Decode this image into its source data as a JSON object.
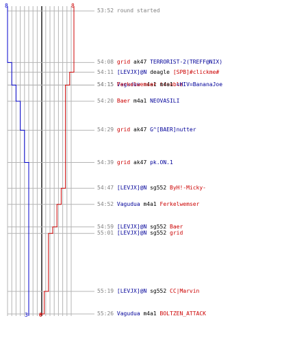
{
  "colors": {
    "team_a": "#0000cc",
    "team_b": "#cc0000",
    "grid": "#b4b4b4",
    "center": "#555555",
    "time": "#808080"
  },
  "team_a_count_start": "8",
  "team_b_count_start": "8",
  "team_a_count_end": "3",
  "team_b_count_end": "0",
  "events": [
    {
      "time": "53:52",
      "parts": [
        {
          "text": "round started",
          "cls": "start"
        }
      ]
    },
    {
      "time": "54:08",
      "parts": [
        {
          "text": "grid",
          "cls": "red"
        },
        {
          "text": " ak47 ",
          "cls": "blk"
        },
        {
          "text": "TERRORIST-2(TREFF@NIX)",
          "cls": "blue"
        }
      ]
    },
    {
      "time": "54:11",
      "parts": [
        {
          "text": "[LEVJX]@N",
          "cls": "blue"
        },
        {
          "text": " deagle ",
          "cls": "blk"
        },
        {
          "text": "[SPB]#clickme#",
          "cls": "red"
        }
      ]
    },
    {
      "time": "54:15",
      "parts": [
        {
          "text": "Vagudua",
          "cls": "blue"
        },
        {
          "text": " m4a1 ",
          "cls": "blk"
        },
        {
          "text": "trouble",
          "cls": "red"
        }
      ]
    },
    {
      "time": "54:15",
      "parts": [
        {
          "text": "Ferkelwemser",
          "cls": "red"
        },
        {
          "text": " m4a1 ",
          "cls": "blk"
        },
        {
          "text": "=HIV=BananaJoe",
          "cls": "blue"
        }
      ]
    },
    {
      "time": "54:20",
      "parts": [
        {
          "text": "Baer",
          "cls": "red"
        },
        {
          "text": " m4a1 ",
          "cls": "blk"
        },
        {
          "text": "NEOVASILI",
          "cls": "blue"
        }
      ]
    },
    {
      "time": "54:29",
      "parts": [
        {
          "text": "grid",
          "cls": "red"
        },
        {
          "text": " ak47 ",
          "cls": "blk"
        },
        {
          "text": "G^[BAER]nutter",
          "cls": "blue"
        }
      ]
    },
    {
      "time": "54:39",
      "parts": [
        {
          "text": "grid",
          "cls": "red"
        },
        {
          "text": " ak47 ",
          "cls": "blk"
        },
        {
          "text": "pk.ON.1",
          "cls": "blue"
        }
      ]
    },
    {
      "time": "54:47",
      "parts": [
        {
          "text": "[LEVJX]@N",
          "cls": "blue"
        },
        {
          "text": " sg552 ",
          "cls": "blk"
        },
        {
          "text": "ByH!-Micky-",
          "cls": "red"
        }
      ]
    },
    {
      "time": "54:52",
      "parts": [
        {
          "text": "Vagudua",
          "cls": "blue"
        },
        {
          "text": " m4a1 ",
          "cls": "blk"
        },
        {
          "text": "Ferkelwemser",
          "cls": "red"
        }
      ]
    },
    {
      "time": "54:59",
      "parts": [
        {
          "text": "[LEVJX]@N",
          "cls": "blue"
        },
        {
          "text": " sg552 ",
          "cls": "blk"
        },
        {
          "text": "Baer",
          "cls": "red"
        }
      ]
    },
    {
      "time": "55:01",
      "parts": [
        {
          "text": "[LEVJX]@N",
          "cls": "blue"
        },
        {
          "text": " sg552 ",
          "cls": "blk"
        },
        {
          "text": "grid",
          "cls": "red"
        }
      ]
    },
    {
      "time": "55:19",
      "parts": [
        {
          "text": "[LEVJX]@N",
          "cls": "blue"
        },
        {
          "text": " sg552 ",
          "cls": "blk"
        },
        {
          "text": "CC|Marvin",
          "cls": "red"
        }
      ]
    },
    {
      "time": "55:26",
      "parts": [
        {
          "text": "Vagudua",
          "cls": "blue"
        },
        {
          "text": " m4a1 ",
          "cls": "blk"
        },
        {
          "text": "BOLTZEN_ATTACK",
          "cls": "red"
        }
      ]
    }
  ]
}
